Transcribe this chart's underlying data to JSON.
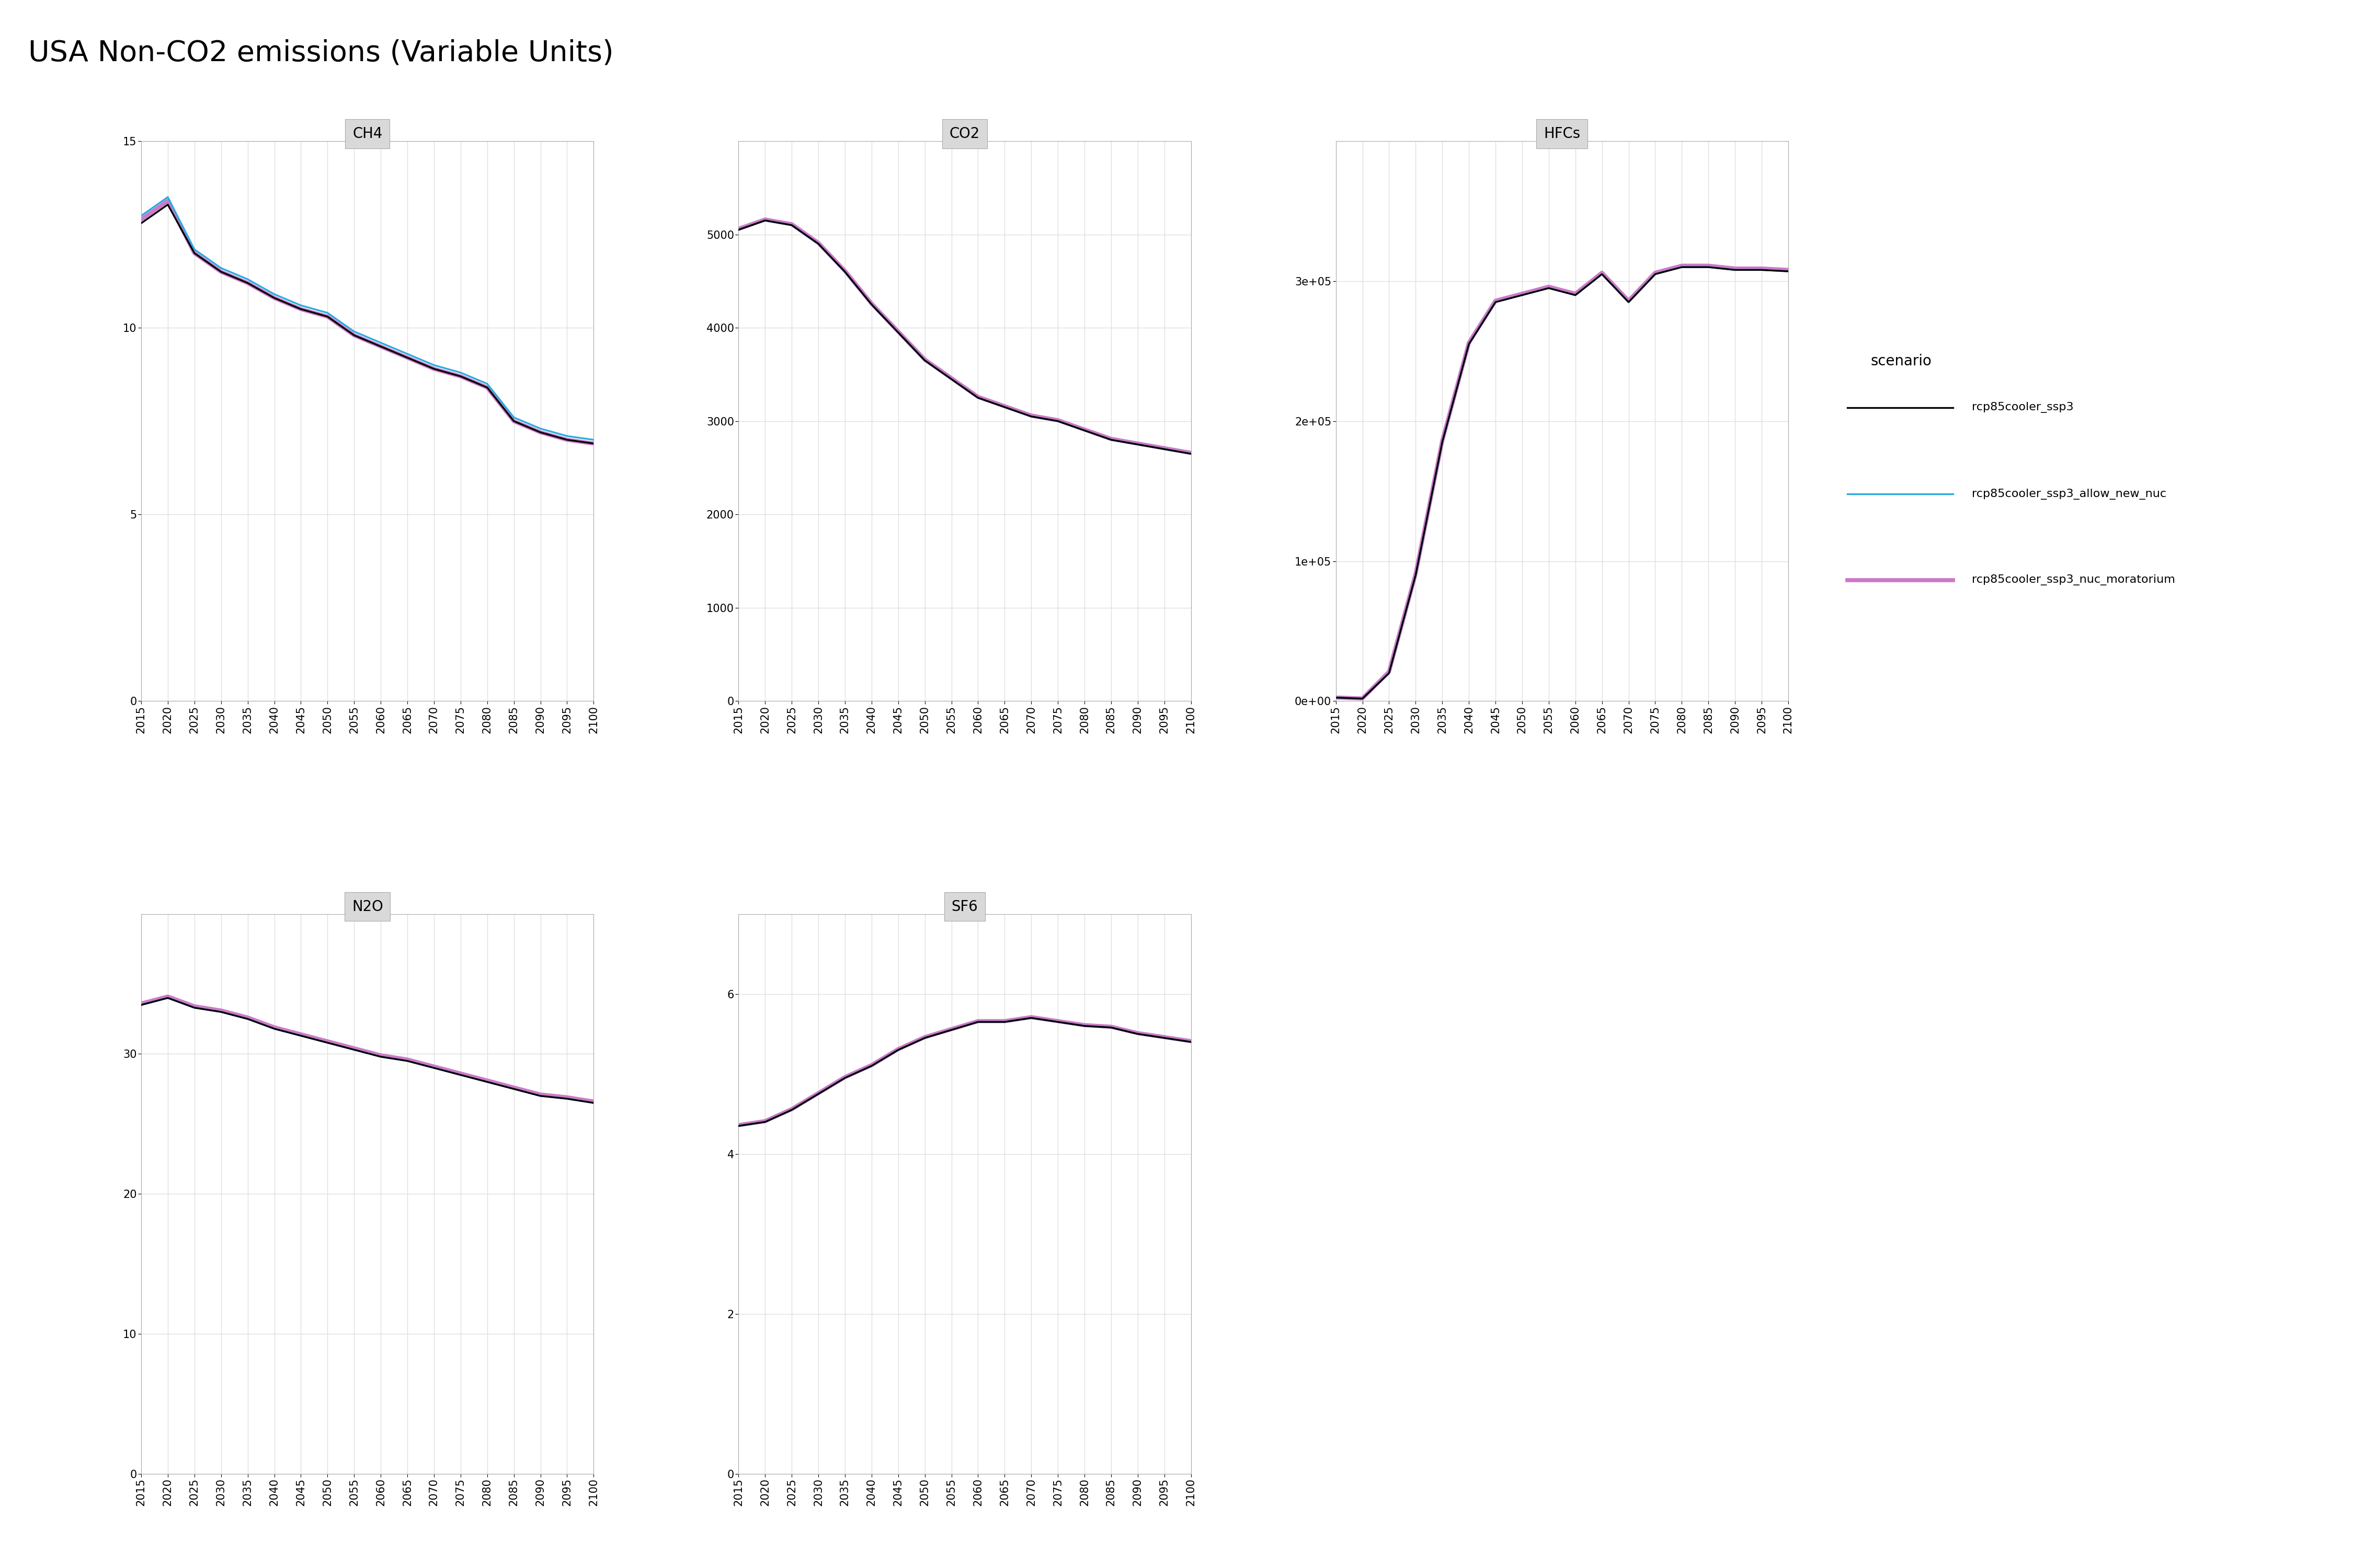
{
  "title": "USA Non-CO2 emissions (Variable Units)",
  "years": [
    2015,
    2020,
    2025,
    2030,
    2035,
    2040,
    2045,
    2050,
    2055,
    2060,
    2065,
    2070,
    2075,
    2080,
    2085,
    2090,
    2095,
    2100
  ],
  "scenarios": [
    "rcp85cooler_ssp3",
    "rcp85cooler_ssp3_allow_new_nuc",
    "rcp85cooler_ssp3_nuc_moratorium"
  ],
  "scenario_colors": [
    "#000000",
    "#29ABE2",
    "#CC79C8"
  ],
  "scenario_linewidths": [
    1.2,
    1.2,
    2.8
  ],
  "CH4": {
    "rcp85cooler_ssp3": [
      12.8,
      13.3,
      12.0,
      11.5,
      11.2,
      10.8,
      10.5,
      10.3,
      9.8,
      9.5,
      9.2,
      8.9,
      8.7,
      8.4,
      7.5,
      7.2,
      7.0,
      6.9
    ],
    "rcp85cooler_ssp3_allow_new_nuc": [
      13.0,
      13.5,
      12.1,
      11.6,
      11.3,
      10.9,
      10.6,
      10.4,
      9.9,
      9.6,
      9.3,
      9.0,
      8.8,
      8.5,
      7.6,
      7.3,
      7.1,
      7.0
    ],
    "rcp85cooler_ssp3_nuc_moratorium": [
      12.9,
      13.4,
      12.0,
      11.5,
      11.2,
      10.8,
      10.5,
      10.3,
      9.8,
      9.5,
      9.2,
      8.9,
      8.7,
      8.4,
      7.5,
      7.2,
      7.0,
      6.9
    ],
    "ylim": [
      0,
      15
    ],
    "yticks": [
      0,
      5,
      10,
      15
    ]
  },
  "CO2": {
    "rcp85cooler_ssp3": [
      5050,
      5150,
      5100,
      4900,
      4600,
      4250,
      3950,
      3650,
      3450,
      3250,
      3150,
      3050,
      3000,
      2900,
      2800,
      2750,
      2700,
      2650
    ],
    "rcp85cooler_ssp3_allow_new_nuc": [
      5050,
      5150,
      5100,
      4900,
      4600,
      4250,
      3950,
      3650,
      3450,
      3250,
      3150,
      3050,
      3000,
      2900,
      2800,
      2750,
      2700,
      2650
    ],
    "rcp85cooler_ssp3_nuc_moratorium": [
      5060,
      5160,
      5110,
      4910,
      4610,
      4260,
      3960,
      3660,
      3460,
      3260,
      3160,
      3060,
      3010,
      2910,
      2810,
      2760,
      2710,
      2660
    ],
    "ylim": [
      0,
      6000
    ],
    "yticks": [
      0,
      1000,
      2000,
      3000,
      4000,
      5000
    ]
  },
  "HFCs": {
    "rcp85cooler_ssp3": [
      2500,
      1800,
      20000,
      90000,
      185000,
      255000,
      285000,
      290000,
      295000,
      290000,
      305000,
      285000,
      305000,
      310000,
      310000,
      308000,
      308000,
      307000
    ],
    "rcp85cooler_ssp3_allow_new_nuc": [
      2500,
      1800,
      20000,
      90000,
      185000,
      255000,
      285000,
      290000,
      295000,
      290000,
      305000,
      285000,
      305000,
      310000,
      310000,
      308000,
      308000,
      307000
    ],
    "rcp85cooler_ssp3_nuc_moratorium": [
      2600,
      1900,
      21000,
      91000,
      186000,
      256000,
      286000,
      291000,
      296000,
      291000,
      306000,
      286000,
      306000,
      311000,
      311000,
      309000,
      309000,
      308000
    ],
    "ylim": [
      0,
      400000
    ],
    "yticks": [
      0,
      100000,
      200000,
      300000
    ]
  },
  "N2O": {
    "rcp85cooler_ssp3": [
      33.5,
      34.0,
      33.3,
      33.0,
      32.5,
      31.8,
      31.3,
      30.8,
      30.3,
      29.8,
      29.5,
      29.0,
      28.5,
      28.0,
      27.5,
      27.0,
      26.8,
      26.5
    ],
    "rcp85cooler_ssp3_allow_new_nuc": [
      33.5,
      34.0,
      33.3,
      33.0,
      32.5,
      31.8,
      31.3,
      30.8,
      30.3,
      29.8,
      29.5,
      29.0,
      28.5,
      28.0,
      27.5,
      27.0,
      26.8,
      26.5
    ],
    "rcp85cooler_ssp3_nuc_moratorium": [
      33.6,
      34.1,
      33.4,
      33.1,
      32.6,
      31.9,
      31.4,
      30.9,
      30.4,
      29.9,
      29.6,
      29.1,
      28.6,
      28.1,
      27.6,
      27.1,
      26.9,
      26.6
    ],
    "ylim": [
      0,
      40
    ],
    "yticks": [
      0,
      10,
      20,
      30
    ]
  },
  "SF6": {
    "rcp85cooler_ssp3": [
      4.35,
      4.4,
      4.55,
      4.75,
      4.95,
      5.1,
      5.3,
      5.45,
      5.55,
      5.65,
      5.65,
      5.7,
      5.65,
      5.6,
      5.58,
      5.5,
      5.45,
      5.4
    ],
    "rcp85cooler_ssp3_allow_new_nuc": [
      4.35,
      4.4,
      4.55,
      4.75,
      4.95,
      5.1,
      5.3,
      5.45,
      5.55,
      5.65,
      5.65,
      5.7,
      5.65,
      5.6,
      5.58,
      5.5,
      5.45,
      5.4
    ],
    "rcp85cooler_ssp3_nuc_moratorium": [
      4.36,
      4.41,
      4.56,
      4.76,
      4.96,
      5.11,
      5.31,
      5.46,
      5.56,
      5.66,
      5.66,
      5.71,
      5.66,
      5.61,
      5.59,
      5.51,
      5.46,
      5.41
    ],
    "ylim": [
      0,
      7
    ],
    "yticks": [
      0,
      2,
      4,
      6
    ]
  },
  "panel_face": "#f5f5f5",
  "plot_bg": "#ffffff",
  "strip_bg": "#d9d9d9",
  "grid_color": "#e0e0e0",
  "panel_border": "#aaaaaa",
  "title_fontsize": 16,
  "strip_fontsize": 9,
  "tick_fontsize": 7.5,
  "legend_title_fontsize": 9,
  "legend_text_fontsize": 8
}
